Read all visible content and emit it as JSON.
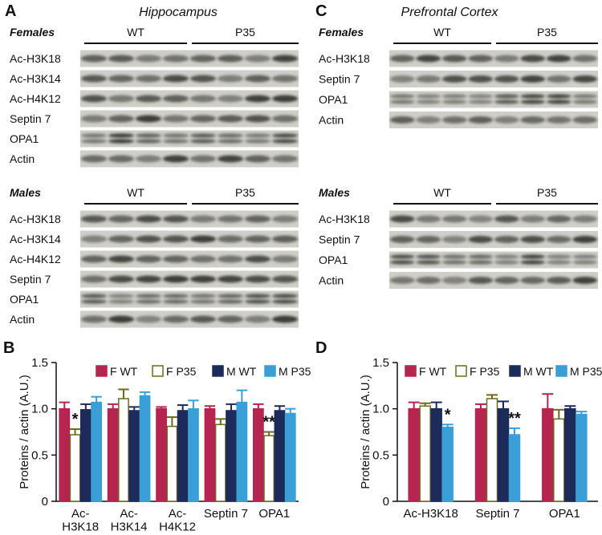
{
  "blots": {
    "A": {
      "letter": "A",
      "title": "Hippocampus",
      "groups": [
        {
          "name": "Females",
          "conditions": [
            "WT",
            "P35"
          ],
          "rows": [
            "Ac-H3K18",
            "Ac-H3K14",
            "Ac-H4K12",
            "Septin 7",
            "OPA1",
            "Actin"
          ]
        },
        {
          "name": "Males",
          "conditions": [
            "WT",
            "P35"
          ],
          "rows": [
            "Ac-H3K18",
            "Ac-H3K14",
            "Ac-H4K12",
            "Septin 7",
            "OPA1",
            "Actin"
          ]
        }
      ]
    },
    "C": {
      "letter": "C",
      "title": "Prefrontal Cortex",
      "groups": [
        {
          "name": "Females",
          "conditions": [
            "WT",
            "P35"
          ],
          "rows": [
            "Ac-H3K18",
            "Septin 7",
            "OPA1",
            "Actin"
          ]
        },
        {
          "name": "Males",
          "conditions": [
            "WT",
            "P35"
          ],
          "rows": [
            "Ac-H3K18",
            "Septin 7",
            "OPA1",
            "Actin"
          ]
        }
      ]
    }
  },
  "chart_data": [
    {
      "type": "bar",
      "letter": "B",
      "ylabel": "Proteins / actin (A.U.)",
      "categories": [
        "Ac-\nH3K18",
        "Ac-\nH3K14",
        "Ac-\nH4K12",
        "Septin 7",
        "OPA1"
      ],
      "series": [
        {
          "name": "F WT",
          "color": "#b5254f",
          "values": [
            1.0,
            1.0,
            1.0,
            1.0,
            1.0
          ],
          "errors": [
            0.07,
            0.05,
            0.02,
            0.03,
            0.05
          ]
        },
        {
          "name": "F P35",
          "color": "#ffffff",
          "values": [
            0.72,
            1.11,
            0.81,
            0.83,
            0.71
          ],
          "errors": [
            0.06,
            0.1,
            0.1,
            0.06,
            0.04
          ]
        },
        {
          "name": "M WT",
          "color": "#1d2b5a",
          "values": [
            0.99,
            0.98,
            0.98,
            0.98,
            0.98
          ],
          "errors": [
            0.06,
            0.04,
            0.06,
            0.07,
            0.05
          ]
        },
        {
          "name": "M P35",
          "color": "#3a9fd6",
          "values": [
            1.07,
            1.14,
            1.0,
            1.07,
            0.95
          ],
          "errors": [
            0.06,
            0.04,
            0.09,
            0.13,
            0.05
          ]
        }
      ],
      "annotations": [
        "*",
        "**"
      ],
      "ylim": [
        0,
        1.5
      ],
      "yticks": [
        0,
        0.5,
        {
          "value": 1,
          "label": "1.0"
        },
        1.5
      ]
    },
    {
      "type": "bar",
      "letter": "D",
      "ylabel": "Proteins / actin (A.U.)",
      "categories": [
        "Ac-H3K18",
        "Septin 7",
        "OPA1"
      ],
      "series": [
        {
          "name": "F WT",
          "color": "#b5254f",
          "values": [
            1.0,
            1.0,
            1.0
          ],
          "errors": [
            0.07,
            0.05,
            0.16
          ]
        },
        {
          "name": "F P35",
          "color": "#ffffff",
          "values": [
            1.03,
            1.11,
            0.89
          ],
          "errors": [
            0.03,
            0.04,
            0.1
          ]
        },
        {
          "name": "M WT",
          "color": "#1d2b5a",
          "values": [
            1.0,
            1.0,
            1.0
          ],
          "errors": [
            0.07,
            0.08,
            0.03
          ]
        },
        {
          "name": "M P35",
          "color": "#3a9fd6",
          "values": [
            0.8,
            0.72,
            0.94
          ],
          "errors": [
            0.03,
            0.07,
            0.03
          ]
        }
      ],
      "annotations": [
        "*",
        "**"
      ],
      "ylim": [
        0,
        1.5
      ],
      "yticks": [
        0,
        0.5,
        {
          "value": 1,
          "label": "1.0"
        },
        1.5
      ]
    }
  ]
}
